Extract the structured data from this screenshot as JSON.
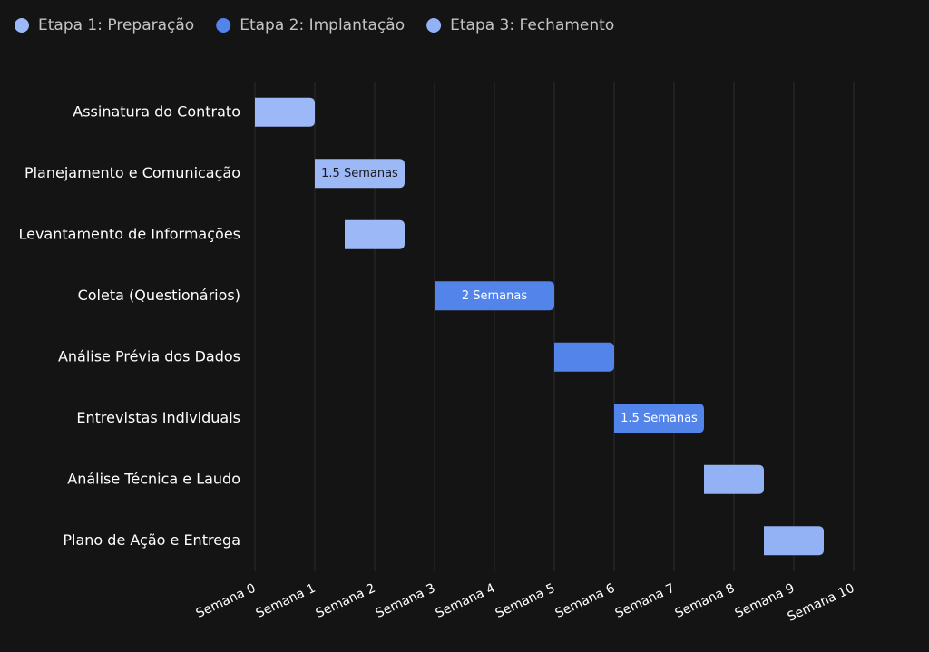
{
  "chart_data": {
    "type": "gantt",
    "series": [
      {
        "name": "Etapa 1: Preparação",
        "color": "#9db8f6",
        "categories": [
          "Assinatura do Contrato",
          "Planejamento e Comunicação",
          "Levantamento de Informações"
        ],
        "start": [
          0,
          1,
          1.5
        ],
        "values": [
          1,
          1.5,
          1
        ],
        "value_labels": [
          null,
          "1.5 Semanas",
          null
        ]
      },
      {
        "name": "Etapa 2: Implantação",
        "color": "#5384ea",
        "categories": [
          "Coleta (Questionários)",
          "Análise Prévia dos Dados",
          "Entrevistas Individuais"
        ],
        "start": [
          3,
          5,
          6
        ],
        "values": [
          2,
          1,
          1.5
        ],
        "value_labels": [
          "2 Semanas",
          null,
          "1.5 Semanas"
        ]
      },
      {
        "name": "Etapa 3: Fechamento",
        "color": "#93b2f6",
        "categories": [
          "Análise Técnica e Laudo",
          "Plano de Ação e Entrega"
        ],
        "start": [
          7.5,
          8.5
        ],
        "values": [
          1,
          1
        ],
        "value_labels": [
          null,
          null
        ]
      }
    ],
    "xlim": [
      0,
      10
    ],
    "xticks": [
      {
        "value": 0,
        "label": "Semana 0"
      },
      {
        "value": 1,
        "label": "Semana 1"
      },
      {
        "value": 2,
        "label": "Semana 2"
      },
      {
        "value": 3,
        "label": "Semana 3"
      },
      {
        "value": 4,
        "label": "Semana 4"
      },
      {
        "value": 5,
        "label": "Semana 5"
      },
      {
        "value": 6,
        "label": "Semana 6"
      },
      {
        "value": 7,
        "label": "Semana 7"
      },
      {
        "value": 8,
        "label": "Semana 8"
      },
      {
        "value": 9,
        "label": "Semana 9"
      },
      {
        "value": 10,
        "label": "Semana 10"
      }
    ],
    "grid": true
  }
}
